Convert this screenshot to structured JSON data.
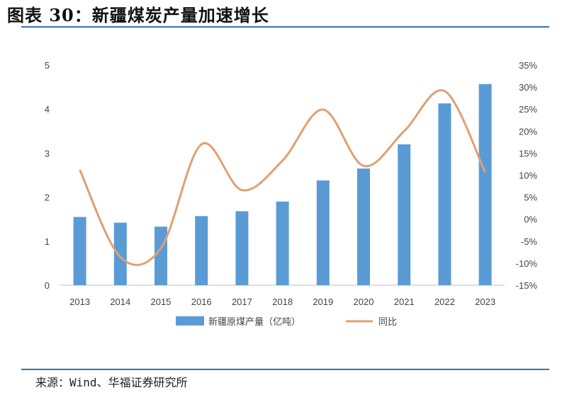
{
  "header": {
    "title": "图表 30：新疆煤炭产量加速增长"
  },
  "footer": {
    "source": "来源：Wind、华福证券研究所"
  },
  "colors": {
    "bar": "#5b9bd5",
    "line": "#e0a070",
    "rule": "#3d6fb3"
  },
  "chart_data": {
    "type": "bar",
    "categories": [
      "2013",
      "2014",
      "2015",
      "2016",
      "2017",
      "2018",
      "2019",
      "2020",
      "2021",
      "2022",
      "2023"
    ],
    "series": [
      {
        "name": "新疆原煤产量（亿吨）",
        "type": "bar",
        "axis": "left",
        "values": [
          1.55,
          1.42,
          1.33,
          1.57,
          1.68,
          1.9,
          2.38,
          2.65,
          3.2,
          4.13,
          4.57
        ]
      },
      {
        "name": "同比",
        "type": "line",
        "axis": "right",
        "values": [
          11.2,
          -8.6,
          -6.6,
          17.0,
          6.6,
          13.3,
          24.9,
          12.1,
          20.0,
          29.1,
          10.6
        ]
      }
    ],
    "y_left": {
      "ylim": [
        0,
        5
      ],
      "ticks": [
        "0",
        "1",
        "2",
        "3",
        "4",
        "5"
      ]
    },
    "y_right": {
      "ylim": [
        -15,
        35
      ],
      "ticks": [
        "-15%",
        "-10%",
        "-5%",
        "0%",
        "5%",
        "10%",
        "15%",
        "20%",
        "25%",
        "30%",
        "35%"
      ]
    },
    "legend_position": "bottom",
    "grid": false
  }
}
